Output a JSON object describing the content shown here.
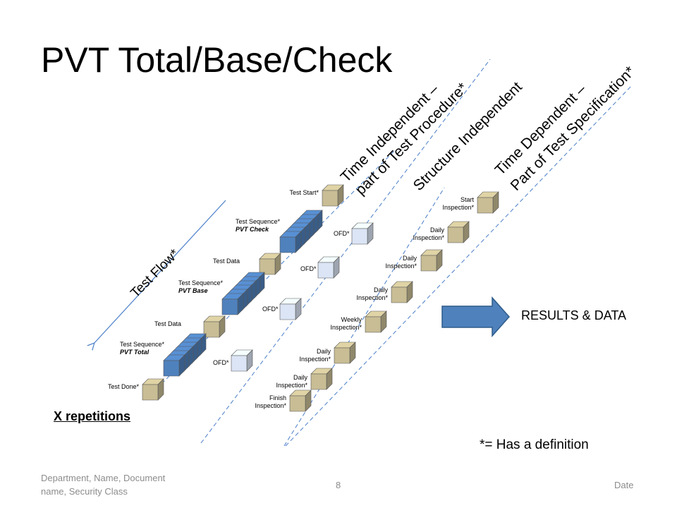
{
  "slide": {
    "title": "PVT Total/Base/Check",
    "lane_headers": {
      "time_independent": [
        "Time Independent –",
        "part of Test Procedure*"
      ],
      "structure_independent": "Structure Independent",
      "time_dependent": [
        "Time Dependent –",
        "Part of Test Specification*"
      ]
    },
    "test_flow_label": "Test Flow*",
    "procedure_steps": [
      {
        "line1": "Test Start*"
      },
      {
        "line1": "Test Sequence*",
        "line2": "PVT Check"
      },
      {
        "line1": "Test Data"
      },
      {
        "line1": "Test Sequence*",
        "line2": "PVT Base"
      },
      {
        "line1": "Test Data"
      },
      {
        "line1": "Test Sequence*",
        "line2": "PVT Total"
      },
      {
        "line1": "Test Done*"
      }
    ],
    "ofd_labels": [
      "OFD*",
      "OFD*",
      "OFD*",
      "OFD*"
    ],
    "inspections": [
      {
        "line1": "Start",
        "line2": "Inspection*"
      },
      {
        "line1": "Daily",
        "line2": "Inspection*"
      },
      {
        "line1": "Daily",
        "line2": "Inspection*"
      },
      {
        "line1": "Daily",
        "line2": "Inspection*"
      },
      {
        "line1": "Weekly",
        "line2": "Inspection*"
      },
      {
        "line1": "Daily",
        "line2": "Inspection*"
      },
      {
        "line1": "Daily",
        "line2": "Inspection*"
      },
      {
        "line1": "Finish",
        "line2": "Inspection*"
      }
    ],
    "repetitions_label": "X repetitions",
    "results_label": "RESULTS & DATA",
    "definition_note": "*= Has a definition",
    "footer": {
      "left": [
        "Department,  Name, Document",
        "name, Security Class"
      ],
      "page_number": "8",
      "date": "Date"
    }
  },
  "colors": {
    "tan_cube": "#c8bd94",
    "dark_blue_cube": "#4f81bd",
    "light_blue_cube": "#dbe5f5",
    "dashed_line": "#4a7ec9",
    "arrow_fill": "#4f81bd",
    "footer_text": "#8c8c8c"
  }
}
